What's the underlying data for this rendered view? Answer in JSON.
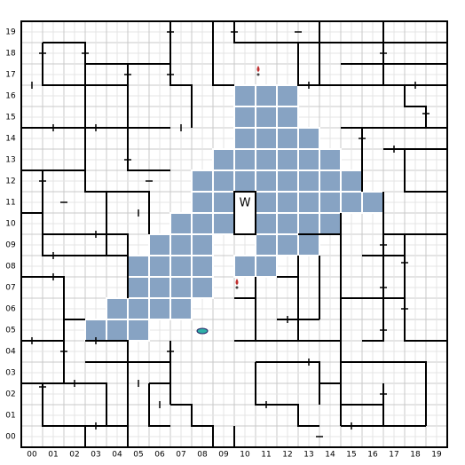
{
  "map": {
    "x_labels": [
      "00",
      "01",
      "02",
      "03",
      "04",
      "05",
      "06",
      "07",
      "08",
      "09",
      "10",
      "11",
      "12",
      "13",
      "14",
      "15",
      "16",
      "17",
      "18",
      "19"
    ],
    "y_labels": [
      "00",
      "01",
      "02",
      "03",
      "04",
      "05",
      "06",
      "07",
      "08",
      "09",
      "10",
      "11",
      "12",
      "13",
      "14",
      "15",
      "16",
      "17",
      "18",
      "19"
    ],
    "marker": "W"
  }
}
